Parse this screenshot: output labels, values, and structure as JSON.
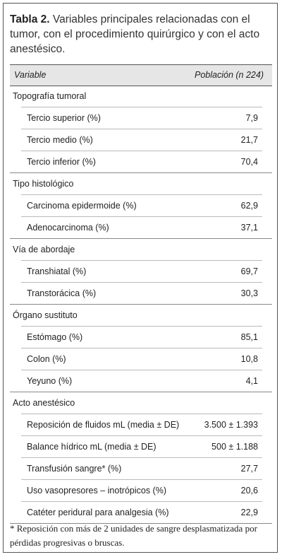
{
  "title": {
    "label": "Tabla 2.",
    "text": "Variables principales relacionadas con el tumor, con el procedimiento quirúrgico y con el acto anestésico."
  },
  "table": {
    "header": [
      "Variable",
      "Población (n 224)"
    ],
    "groups": [
      {
        "name": "Topografía tumoral",
        "rows": [
          [
            "Tercio superior (%)",
            "7,9"
          ],
          [
            "Tercio medio (%)",
            "21,7"
          ],
          [
            "Tercio inferior (%)",
            "70,4"
          ]
        ]
      },
      {
        "name": "Tipo histológico",
        "rows": [
          [
            "Carcinoma epidermoide (%)",
            "62,9"
          ],
          [
            "Adenocarcinoma (%)",
            "37,1"
          ]
        ]
      },
      {
        "name": "Vía de abordaje",
        "rows": [
          [
            "Transhiatal (%)",
            "69,7"
          ],
          [
            "Transtorácica (%)",
            "30,3"
          ]
        ]
      },
      {
        "name": "Órgano sustituto",
        "rows": [
          [
            "Estómago (%)",
            "85,1"
          ],
          [
            "Colon (%)",
            "10,8"
          ],
          [
            "Yeyuno (%)",
            "4,1"
          ]
        ]
      },
      {
        "name": "Acto anestésico",
        "rows": [
          [
            "Reposición de fluidos mL (media ± DE)",
            "3.500 ± 1.393"
          ],
          [
            "Balance hídrico mL (media ± DE)",
            "500 ± 1.188"
          ],
          [
            "Transfusión sangre* (%)",
            "27,7"
          ],
          [
            "Uso vasopresores – inotrópicos (%)",
            "20,6"
          ],
          [
            "Catéter peridural para analgesia (%)",
            "22,9"
          ]
        ]
      }
    ]
  },
  "footnote": "* Reposición con más de 2 unidades de sangre desplasmatizada por pérdidas progresivas o bruscas."
}
